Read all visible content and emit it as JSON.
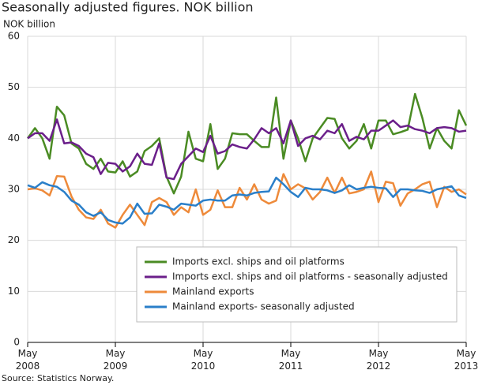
{
  "chart_data": {
    "type": "line",
    "title": "Seasonally adjusted figures. NOK billion",
    "y_label": "NOK billion",
    "source": "Source: Statistics Norway.",
    "x": [
      "2008-05",
      "2008-06",
      "2008-07",
      "2008-08",
      "2008-09",
      "2008-10",
      "2008-11",
      "2008-12",
      "2009-01",
      "2009-02",
      "2009-03",
      "2009-04",
      "2009-05",
      "2009-06",
      "2009-07",
      "2009-08",
      "2009-09",
      "2009-10",
      "2009-11",
      "2009-12",
      "2010-01",
      "2010-02",
      "2010-03",
      "2010-04",
      "2010-05",
      "2010-06",
      "2010-07",
      "2010-08",
      "2010-09",
      "2010-10",
      "2010-11",
      "2010-12",
      "2011-01",
      "2011-02",
      "2011-03",
      "2011-04",
      "2011-05",
      "2011-06",
      "2011-07",
      "2011-08",
      "2011-09",
      "2011-10",
      "2011-11",
      "2011-12",
      "2012-01",
      "2012-02",
      "2012-03",
      "2012-04",
      "2012-05",
      "2012-06",
      "2012-07",
      "2012-08",
      "2012-09",
      "2012-10",
      "2012-11",
      "2012-12",
      "2013-01",
      "2013-02",
      "2013-03",
      "2013-04",
      "2013-05"
    ],
    "series": [
      {
        "name": "Imports excl. ships and oil platforms",
        "color": "#4a8b23",
        "values": [
          40,
          42,
          40,
          36,
          46.2,
          44.5,
          39,
          38,
          35,
          34,
          36,
          33.5,
          33.3,
          35.5,
          32.5,
          33.5,
          37.5,
          38.5,
          40,
          32.5,
          29.2,
          32.5,
          41.3,
          36,
          35.5,
          42.8,
          34,
          36,
          41,
          40.8,
          40.8,
          39.5,
          38.3,
          38.3,
          48,
          36,
          43.5,
          40,
          35.5,
          40,
          42,
          44,
          43.8,
          40,
          38,
          39.5,
          42.8,
          38,
          43.5,
          43.5,
          40.8,
          41.2,
          41.7,
          48.7,
          44,
          38,
          42,
          39.5,
          38,
          45.5,
          42.5
        ]
      },
      {
        "name": "Imports excl. ships and oil platforms - seasonally adjusted",
        "color": "#6b1f8a",
        "values": [
          40,
          41,
          41,
          39.5,
          43.7,
          39,
          39.2,
          38.5,
          37,
          36.3,
          33,
          35.2,
          35,
          33.5,
          34.5,
          37,
          35,
          34.8,
          39,
          32.3,
          32,
          35,
          36.5,
          38,
          37.3,
          40.5,
          37,
          37.5,
          38.8,
          38.3,
          38,
          39.8,
          42,
          41,
          42,
          39,
          43.5,
          38.5,
          40,
          40.5,
          39.8,
          41.5,
          41,
          42.8,
          39.5,
          40.3,
          39.8,
          41.5,
          41.5,
          42.5,
          43.5,
          42.2,
          42.5,
          41.8,
          41.5,
          41,
          42,
          42.2,
          42,
          41.3,
          41.5
        ]
      },
      {
        "name": "Mainland exports",
        "color": "#ee8a3a",
        "values": [
          30,
          30.2,
          29.8,
          28.8,
          32.6,
          32.5,
          28.6,
          26,
          24.5,
          24.2,
          26,
          23.3,
          22.5,
          25,
          27,
          25,
          23,
          27.5,
          28.3,
          27.5,
          25,
          26.5,
          25.5,
          30,
          25,
          26,
          29.8,
          26.5,
          26.5,
          30.3,
          28,
          31,
          28,
          27.2,
          27.8,
          33,
          30,
          31,
          30.2,
          28,
          29.5,
          32.3,
          29.3,
          32.3,
          29.2,
          29.5,
          30,
          33.5,
          27.5,
          31.5,
          31.2,
          26.8,
          29.2,
          30,
          31,
          31.5,
          26.5,
          30.5,
          29.5,
          30,
          29
        ]
      },
      {
        "name": "Mainland exports- seasonally adjusted",
        "color": "#2a7fc9",
        "values": [
          30.8,
          30.3,
          31.4,
          30.8,
          30.5,
          29.5,
          27.8,
          27,
          25.5,
          24.8,
          25.5,
          24,
          23.5,
          23.3,
          24.5,
          27.2,
          25.2,
          25.3,
          27,
          26.6,
          26,
          27.2,
          27,
          26.8,
          27.8,
          28,
          27.8,
          27.8,
          28.8,
          29,
          28.8,
          29.3,
          29.5,
          29.6,
          32.3,
          31,
          29.5,
          28.5,
          30.3,
          30,
          30,
          29.8,
          29.3,
          29.8,
          30.8,
          30,
          30.3,
          30.5,
          30.3,
          30.2,
          28.5,
          30,
          30,
          29.8,
          29.7,
          29.3,
          30,
          30.3,
          30.6,
          28.8,
          28.3
        ]
      }
    ],
    "xlim": [
      "2008-05",
      "2013-05"
    ],
    "xticks": [
      {
        "value": "2008-05",
        "label": [
          "May",
          "2008"
        ]
      },
      {
        "value": "2009-05",
        "label": [
          "May",
          "2009"
        ]
      },
      {
        "value": "2010-05",
        "label": [
          "May",
          "2010"
        ]
      },
      {
        "value": "2011-05",
        "label": [
          "May",
          "2011"
        ]
      },
      {
        "value": "2012-05",
        "label": [
          "May",
          "2012"
        ]
      },
      {
        "value": "2013-05",
        "label": [
          "May",
          "2013"
        ]
      }
    ],
    "ylim": [
      0,
      60
    ],
    "yticks": [
      0,
      10,
      20,
      30,
      40,
      50,
      60
    ],
    "grid": true
  }
}
